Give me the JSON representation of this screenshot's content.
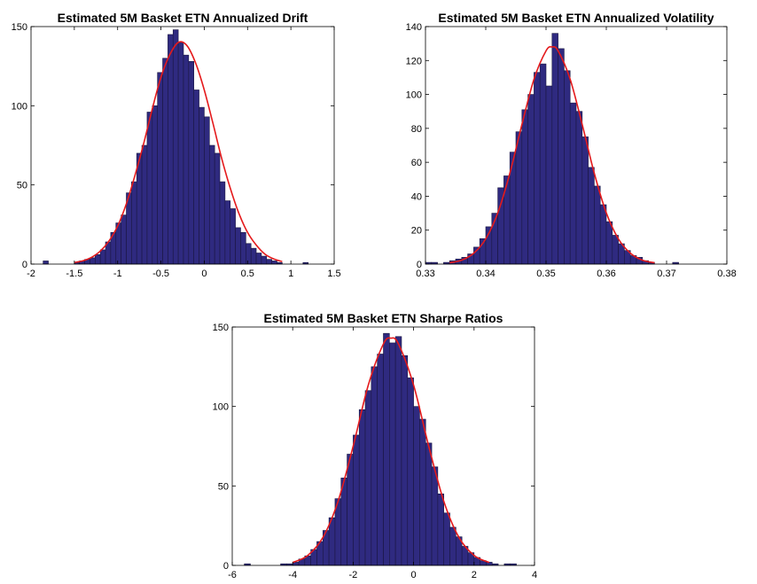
{
  "chart_data": [
    {
      "type": "histogram",
      "title": "Estimated 5M Basket ETN Annualized Drift",
      "bins": [
        -1.86,
        -1.8,
        -1.74,
        -1.68,
        -1.62,
        -1.56,
        -1.5,
        -1.44,
        -1.38,
        -1.32,
        -1.26,
        -1.2,
        -1.14,
        -1.08,
        -1.02,
        -0.96,
        -0.9,
        -0.84,
        -0.78,
        -0.72,
        -0.66,
        -0.6,
        -0.54,
        -0.48,
        -0.42,
        -0.36,
        -0.3,
        -0.24,
        -0.18,
        -0.12,
        -0.06,
        0,
        0.06,
        0.12,
        0.18,
        0.24,
        0.3,
        0.36,
        0.42,
        0.48,
        0.54,
        0.6,
        0.66,
        0.72,
        0.78,
        0.84,
        0.9,
        0.96,
        1.02,
        1.08,
        1.14,
        1.2
      ],
      "values": [
        2,
        0,
        0,
        0,
        0,
        0,
        1,
        2,
        3,
        4,
        6,
        9,
        14,
        20,
        26,
        31,
        45,
        52,
        70,
        75,
        96,
        100,
        121,
        130,
        145,
        148,
        140,
        132,
        128,
        110,
        99,
        93,
        75,
        70,
        52,
        40,
        35,
        23,
        20,
        13,
        10,
        7,
        5,
        3,
        2,
        1,
        0,
        0,
        0,
        0,
        1
      ],
      "color": "#2f2a80",
      "curve": {
        "color": "#e41a1c",
        "x": [
          -1.5,
          -1.4,
          -1.3,
          -1.2,
          -1.1,
          -1.0,
          -0.9,
          -0.8,
          -0.7,
          -0.6,
          -0.5,
          -0.4,
          -0.3,
          -0.2,
          -0.1,
          0,
          0.1,
          0.2,
          0.3,
          0.4,
          0.5,
          0.6,
          0.7,
          0.8,
          0.9
        ],
        "values": [
          1.0,
          2.1,
          4.3,
          8.2,
          14.6,
          24,
          38,
          56,
          76,
          98,
          118,
          132,
          140,
          138,
          127,
          110,
          89,
          67,
          48,
          32,
          20,
          12,
          6.3,
          3.3,
          1.6
        ]
      },
      "xlim": [
        -2,
        1.5
      ],
      "xticks": [
        -2,
        -1.5,
        -1,
        -0.5,
        0,
        0.5,
        1,
        1.5
      ],
      "ylim": [
        0,
        150
      ],
      "yticks": [
        0,
        50,
        100,
        150
      ]
    },
    {
      "type": "histogram",
      "title": "Estimated 5M Basket ETN Annualized Volatility",
      "bins": [
        0.33,
        0.331,
        0.332,
        0.333,
        0.334,
        0.335,
        0.336,
        0.337,
        0.338,
        0.339,
        0.34,
        0.341,
        0.342,
        0.343,
        0.344,
        0.345,
        0.346,
        0.347,
        0.348,
        0.349,
        0.35,
        0.351,
        0.352,
        0.353,
        0.354,
        0.355,
        0.356,
        0.357,
        0.358,
        0.359,
        0.36,
        0.361,
        0.362,
        0.363,
        0.364,
        0.365,
        0.366,
        0.367,
        0.368,
        0.369,
        0.37,
        0.371,
        0.372,
        0.373
      ],
      "values": [
        1,
        1,
        0,
        1,
        2,
        3,
        4,
        6,
        10,
        15,
        22,
        30,
        45,
        52,
        66,
        78,
        91,
        100,
        113,
        118,
        105,
        136,
        127,
        114,
        95,
        90,
        75,
        57,
        46,
        35,
        25,
        17,
        12,
        8,
        5,
        4,
        2,
        1,
        0,
        0,
        0,
        1,
        0
      ],
      "color": "#2f2a80",
      "curve": {
        "color": "#e41a1c",
        "x": [
          0.334,
          0.336,
          0.338,
          0.34,
          0.342,
          0.344,
          0.346,
          0.348,
          0.35,
          0.351,
          0.352,
          0.354,
          0.356,
          0.358,
          0.36,
          0.362,
          0.364,
          0.366,
          0.368
        ],
        "values": [
          0.8,
          2.3,
          6.4,
          14.9,
          30.2,
          53.6,
          82.3,
          109,
          125.7,
          128,
          125.7,
          109,
          82.3,
          53.6,
          30.2,
          14.9,
          6.4,
          2.3,
          0.8
        ]
      },
      "xlim": [
        0.33,
        0.38
      ],
      "xticks": [
        0.33,
        0.34,
        0.35,
        0.36,
        0.37,
        0.38
      ],
      "ylim": [
        0,
        140
      ],
      "yticks": [
        0,
        20,
        40,
        60,
        80,
        100,
        120,
        140
      ]
    },
    {
      "type": "histogram",
      "title": "Estimated 5M Basket ETN Sharpe Ratios",
      "bins": [
        -5.6,
        -5.4,
        -5.2,
        -5,
        -4.8,
        -4.6,
        -4.4,
        -4.2,
        -4,
        -3.8,
        -3.6,
        -3.4,
        -3.2,
        -3,
        -2.8,
        -2.6,
        -2.4,
        -2.2,
        -2,
        -1.8,
        -1.6,
        -1.4,
        -1.2,
        -1,
        -0.8,
        -0.6,
        -0.4,
        -0.2,
        0,
        0.2,
        0.4,
        0.6,
        0.8,
        1,
        1.2,
        1.4,
        1.6,
        1.8,
        2,
        2.2,
        2.4,
        2.6,
        2.8,
        3,
        3.2,
        3.4
      ],
      "values": [
        1,
        0,
        0,
        0,
        0,
        0,
        1,
        1,
        2,
        4,
        6,
        10,
        15,
        22,
        30,
        42,
        55,
        70,
        82,
        98,
        110,
        125,
        133,
        146,
        140,
        144,
        132,
        118,
        100,
        92,
        77,
        62,
        45,
        33,
        24,
        18,
        12,
        8,
        5,
        3,
        2,
        1,
        0,
        1,
        1
      ],
      "color": "#2f2a80",
      "curve": {
        "color": "#e41a1c",
        "x": [
          -4,
          -3.5,
          -3,
          -2.5,
          -2,
          -1.5,
          -1,
          -0.75,
          -0.5,
          0,
          0.5,
          1,
          1.5,
          2,
          2.5
        ],
        "values": [
          1.8,
          6.3,
          17.6,
          40.3,
          75,
          113.4,
          139.3,
          143,
          139.3,
          113.4,
          75,
          40.3,
          17.6,
          6.3,
          1.8
        ]
      },
      "xlim": [
        -6,
        4
      ],
      "xticks": [
        -6,
        -4,
        -2,
        0,
        2,
        4
      ],
      "ylim": [
        0,
        150
      ],
      "yticks": [
        0,
        50,
        100,
        150
      ]
    }
  ]
}
